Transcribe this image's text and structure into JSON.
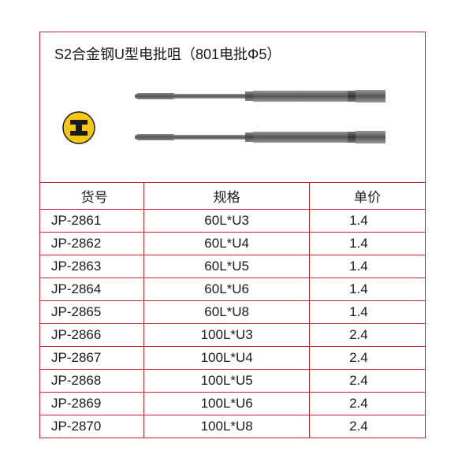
{
  "title": "S2合金钢U型电批咀（801电批Φ5）",
  "logo": {
    "outer_color": "#f7c60e",
    "inner_color": "#1a1a1a",
    "border_color": "#1a1a1a"
  },
  "table": {
    "header_sku": "货号",
    "header_spec": "规格",
    "header_price": "单价",
    "border_color": "#c0282e",
    "rows": [
      {
        "sku": "JP-2861",
        "spec": "60L*U3",
        "price": "1.4"
      },
      {
        "sku": "JP-2862",
        "spec": "60L*U4",
        "price": "1.4"
      },
      {
        "sku": "JP-2863",
        "spec": "60L*U5",
        "price": "1.4"
      },
      {
        "sku": "JP-2864",
        "spec": "60L*U6",
        "price": "1.4"
      },
      {
        "sku": "JP-2865",
        "spec": "60L*U8",
        "price": "1.4"
      },
      {
        "sku": "JP-2866",
        "spec": "100L*U3",
        "price": "2.4"
      },
      {
        "sku": "JP-2867",
        "spec": "100L*U4",
        "price": "2.4"
      },
      {
        "sku": "JP-2868",
        "spec": "100L*U5",
        "price": "2.4"
      },
      {
        "sku": "JP-2869",
        "spec": "100L*U6",
        "price": "2.4"
      },
      {
        "sku": "JP-2870",
        "spec": "100L*U8",
        "price": "2.4"
      }
    ]
  }
}
